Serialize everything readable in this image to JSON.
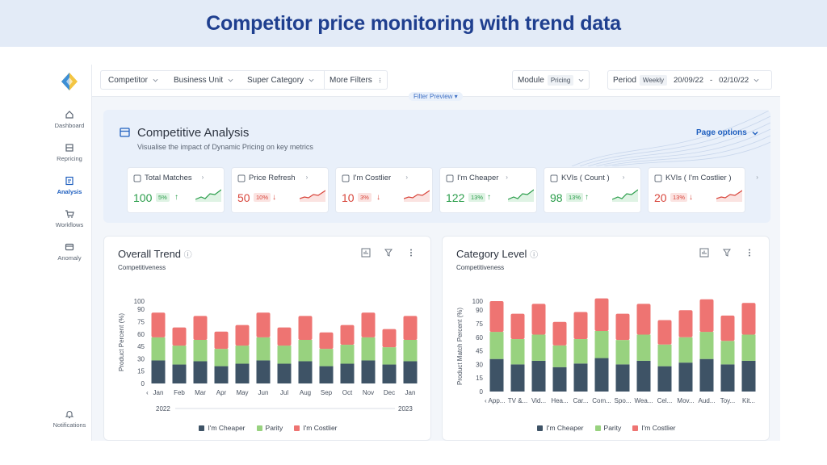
{
  "banner": {
    "title": "Competitor price monitoring with trend data"
  },
  "sidebar": {
    "items": [
      {
        "label": "Dashboard",
        "icon": "home-icon"
      },
      {
        "label": "Repricing",
        "icon": "list-icon"
      },
      {
        "label": "Analysis",
        "icon": "analysis-icon",
        "active": true
      },
      {
        "label": "Workflows",
        "icon": "cart-icon"
      },
      {
        "label": "Anomaly",
        "icon": "card-icon"
      }
    ],
    "bottom": {
      "label": "Notifications",
      "icon": "bell-icon"
    }
  },
  "topbar": {
    "filters": [
      "Competitor",
      "Business Unit",
      "Super Category",
      "More Filters"
    ],
    "module_label": "Module",
    "module_value": "Pricing",
    "period_label": "Period",
    "period_value": "Weekly",
    "date_from": "20/09/22",
    "date_sep": "-",
    "date_to": "02/10/22",
    "filter_preview": "Filter Preview"
  },
  "analysis": {
    "title": "Competitive Analysis",
    "subtitle": "Visualise the impact of Dynamic Pricing on key metrics",
    "page_options": "Page options",
    "kpis": [
      {
        "label": "Total Matches",
        "value": "100",
        "change": "5%",
        "trend": "up",
        "icon": "match-icon"
      },
      {
        "label": "Price Refresh",
        "value": "50",
        "change": "10%",
        "trend": "down",
        "icon": "tag-icon"
      },
      {
        "label": "I'm Costlier",
        "value": "10",
        "change": "3%",
        "trend": "down",
        "icon": "costlier-icon"
      },
      {
        "label": "I'm Cheaper",
        "value": "122",
        "change": "13%",
        "trend": "up",
        "icon": "cheaper-icon"
      },
      {
        "label": "KVIs ( Count )",
        "value": "98",
        "change": "13%",
        "trend": "up",
        "icon": "kvi-icon"
      },
      {
        "label": "KVIs ( I'm Costlier )",
        "value": "20",
        "change": "13%",
        "trend": "down",
        "icon": "kvi-icon"
      }
    ]
  },
  "colors": {
    "cheaper": "#3e5366",
    "parity": "#98d27f",
    "costlier": "#ee7472",
    "accent": "#1f5fbf"
  },
  "chart_data": [
    {
      "type": "bar",
      "stacked": true,
      "title": "Overall Trend",
      "subtitle": "Competitiveness",
      "ylabel": "Product Percent (%)",
      "yticks": [
        0,
        15,
        30,
        45,
        60,
        75,
        90,
        100
      ],
      "ylim": [
        0,
        100
      ],
      "categories": [
        "Jan",
        "Feb",
        "Mar",
        "Apr",
        "May",
        "Jun",
        "Jul",
        "Aug",
        "Sep",
        "Oct",
        "Nov",
        "Dec",
        "Jan"
      ],
      "year_labels": [
        "2022",
        "2023"
      ],
      "series": [
        {
          "name": "I'm Cheaper",
          "values": [
            28,
            23,
            27,
            21,
            24,
            28,
            24,
            27,
            21,
            24,
            28,
            23,
            27
          ]
        },
        {
          "name": "Parity",
          "values": [
            28,
            23,
            26,
            21,
            22,
            28,
            22,
            26,
            21,
            23,
            28,
            21,
            26
          ]
        },
        {
          "name": "I'm Costlier",
          "values": [
            30,
            22,
            29,
            21,
            25,
            30,
            22,
            29,
            20,
            24,
            30,
            22,
            29
          ]
        }
      ],
      "legend": [
        "I'm Cheaper",
        "Parity",
        "I'm Costlier"
      ]
    },
    {
      "type": "bar",
      "stacked": true,
      "title": "Category Level",
      "subtitle": "Competitiveness",
      "ylabel": "Product Match Percent (%)",
      "yticks": [
        0,
        15,
        30,
        45,
        60,
        75,
        90,
        100
      ],
      "ylim": [
        0,
        100
      ],
      "categories": [
        "App...",
        "TV &...",
        "Vid...",
        "Hea...",
        "Car...",
        "Com...",
        "Spo...",
        "Wea...",
        "Cel...",
        "Mov...",
        "Aud...",
        "Toy...",
        "Kit..."
      ],
      "series": [
        {
          "name": "I'm Cheaper",
          "values": [
            36,
            30,
            34,
            27,
            31,
            37,
            30,
            34,
            28,
            32,
            36,
            30,
            34
          ]
        },
        {
          "name": "Parity",
          "values": [
            30,
            28,
            29,
            24,
            27,
            30,
            27,
            29,
            24,
            28,
            30,
            26,
            29
          ]
        },
        {
          "name": "I'm Costlier",
          "values": [
            34,
            28,
            34,
            26,
            30,
            36,
            29,
            34,
            27,
            30,
            36,
            28,
            35
          ]
        }
      ],
      "legend": [
        "I'm Cheaper",
        "Parity",
        "I'm Costlier"
      ]
    }
  ]
}
